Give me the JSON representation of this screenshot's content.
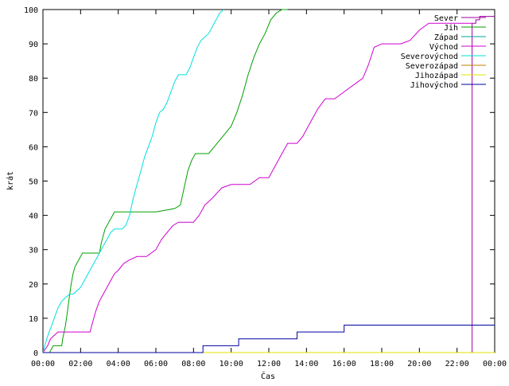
{
  "chart_data": {
    "type": "line",
    "title": "",
    "xlabel": "Čas",
    "ylabel": "krát",
    "xlim": [
      0,
      24
    ],
    "ylim": [
      0,
      100
    ],
    "grid": false,
    "legend_position": "top-right",
    "x_ticks": [
      0,
      2,
      4,
      6,
      8,
      10,
      12,
      14,
      16,
      18,
      20,
      22,
      24
    ],
    "x_tick_labels": [
      "00:00",
      "02:00",
      "04:00",
      "06:00",
      "08:00",
      "10:00",
      "12:00",
      "14:00",
      "16:00",
      "18:00",
      "20:00",
      "22:00",
      "00:00"
    ],
    "y_ticks": [
      0,
      10,
      20,
      30,
      40,
      50,
      60,
      70,
      80,
      90,
      100
    ],
    "series": [
      {
        "name": "Sever",
        "color": "#a000a0",
        "x": [
          0,
          22.8,
          22.8,
          23.0,
          23.0,
          23.2,
          23.2,
          24.0
        ],
        "y": [
          0,
          0,
          96,
          96,
          97,
          97,
          98,
          98
        ]
      },
      {
        "name": "Jih",
        "color": "#00a000",
        "x": [
          0,
          0.35,
          0.55,
          0.6,
          1.0,
          1.05,
          1.2,
          1.3,
          1.4,
          1.5,
          1.6,
          1.7,
          1.8,
          1.9,
          2.0,
          2.1,
          2.2,
          2.3,
          2.4,
          2.5,
          2.6,
          2.7,
          2.8,
          2.9,
          3.0,
          3.1,
          3.2,
          3.3,
          3.4,
          3.5,
          3.6,
          3.7,
          3.8,
          3.9,
          4.0,
          4.1,
          4.2,
          4.3,
          4.4,
          4.5,
          5.0,
          6.0,
          7.0,
          7.3,
          7.5,
          7.7,
          7.9,
          8.0,
          8.1,
          8.2,
          8.3,
          8.5,
          8.8,
          9.1,
          9.4,
          9.7,
          10.0,
          10.3,
          10.6,
          10.9,
          11.2,
          11.5,
          11.8,
          12.1,
          12.4,
          12.7,
          13.0
        ],
        "y": [
          0,
          0,
          2,
          2,
          2,
          4,
          8,
          12,
          16,
          20,
          23,
          25,
          26,
          27,
          28,
          29,
          29,
          29,
          29,
          29,
          29,
          29,
          29,
          29,
          29,
          32,
          34,
          36,
          37,
          38,
          39,
          40,
          41,
          41,
          41,
          41,
          41,
          41,
          41,
          41,
          41,
          41,
          42,
          43,
          48,
          53,
          56,
          57,
          58,
          58,
          58,
          58,
          58,
          60,
          62,
          64,
          66,
          70,
          75,
          81,
          86,
          90,
          93,
          97,
          99,
          100,
          100
        ]
      },
      {
        "name": "Západ",
        "color": "#00a0a0",
        "x": [
          0,
          24
        ],
        "y": [
          0,
          0
        ]
      },
      {
        "name": "Východ",
        "color": "#d000d0",
        "x": [
          0,
          0.25,
          0.4,
          0.6,
          0.8,
          1.0,
          1.5,
          2.0,
          2.5,
          2.6,
          2.7,
          2.8,
          3.0,
          3.2,
          3.4,
          3.6,
          3.8,
          4.0,
          4.3,
          4.6,
          5.0,
          5.5,
          6.0,
          6.3,
          6.6,
          6.9,
          7.2,
          7.5,
          8.0,
          8.3,
          8.6,
          9.0,
          9.5,
          10.0,
          10.5,
          11.0,
          11.5,
          12.0,
          12.3,
          12.6,
          13.0,
          13.5,
          13.8,
          14.0,
          14.3,
          14.6,
          15.0,
          15.5,
          16.0,
          16.5,
          17.0,
          17.3,
          17.6,
          18.0,
          18.5,
          19.0,
          19.5,
          20.0,
          20.5,
          21.0,
          21.5,
          22.0,
          22.5,
          22.8
        ],
        "y": [
          0,
          2,
          4,
          5,
          6,
          6,
          6,
          6,
          6,
          8,
          10,
          12,
          15,
          17,
          19,
          21,
          23,
          24,
          26,
          27,
          28,
          28,
          30,
          33,
          35,
          37,
          38,
          38,
          38,
          40,
          43,
          45,
          48,
          49,
          49,
          49,
          51,
          51,
          54,
          57,
          61,
          61,
          63,
          65,
          68,
          71,
          74,
          74,
          76,
          78,
          80,
          84,
          89,
          90,
          90,
          90,
          91,
          94,
          96,
          96,
          96,
          96,
          96,
          96
        ]
      },
      {
        "name": "Severovýchod",
        "color": "#00e0e0",
        "x": [
          0,
          0.2,
          0.4,
          0.6,
          0.8,
          1.0,
          1.2,
          1.4,
          1.6,
          1.8,
          2.0,
          2.2,
          2.4,
          2.6,
          2.8,
          3.0,
          3.2,
          3.4,
          3.6,
          3.8,
          4.0,
          4.2,
          4.4,
          4.6,
          4.8,
          5.0,
          5.2,
          5.4,
          5.6,
          5.8,
          6.0,
          6.2,
          6.4,
          6.6,
          6.8,
          7.0,
          7.2,
          7.4,
          7.6,
          7.8,
          8.0,
          8.2,
          8.4,
          8.6,
          8.8,
          9.0,
          9.2,
          9.4,
          9.6
        ],
        "y": [
          0,
          4,
          7,
          10,
          13,
          15,
          16,
          17,
          17,
          18,
          19,
          21,
          23,
          25,
          27,
          29,
          31,
          33,
          35,
          36,
          36,
          36,
          37,
          40,
          45,
          49,
          53,
          57,
          60,
          63,
          67,
          70,
          71,
          73,
          76,
          79,
          81,
          81,
          81,
          83,
          86,
          89,
          91,
          92,
          93,
          95,
          97,
          99,
          100
        ]
      },
      {
        "name": "Severozápad",
        "color": "#c08000",
        "x": [
          0,
          24
        ],
        "y": [
          0,
          0
        ]
      },
      {
        "name": "Jihozápad",
        "color": "#e0e000",
        "x": [
          0,
          24
        ],
        "y": [
          0,
          0
        ]
      },
      {
        "name": "Jihovýchod",
        "color": "#0000a0",
        "x": [
          0,
          8.5,
          8.5,
          10.4,
          10.4,
          13.5,
          13.5,
          16.0,
          16.0,
          24.0
        ],
        "y": [
          0,
          0,
          2,
          2,
          4,
          4,
          6,
          6,
          8,
          8
        ]
      }
    ]
  }
}
